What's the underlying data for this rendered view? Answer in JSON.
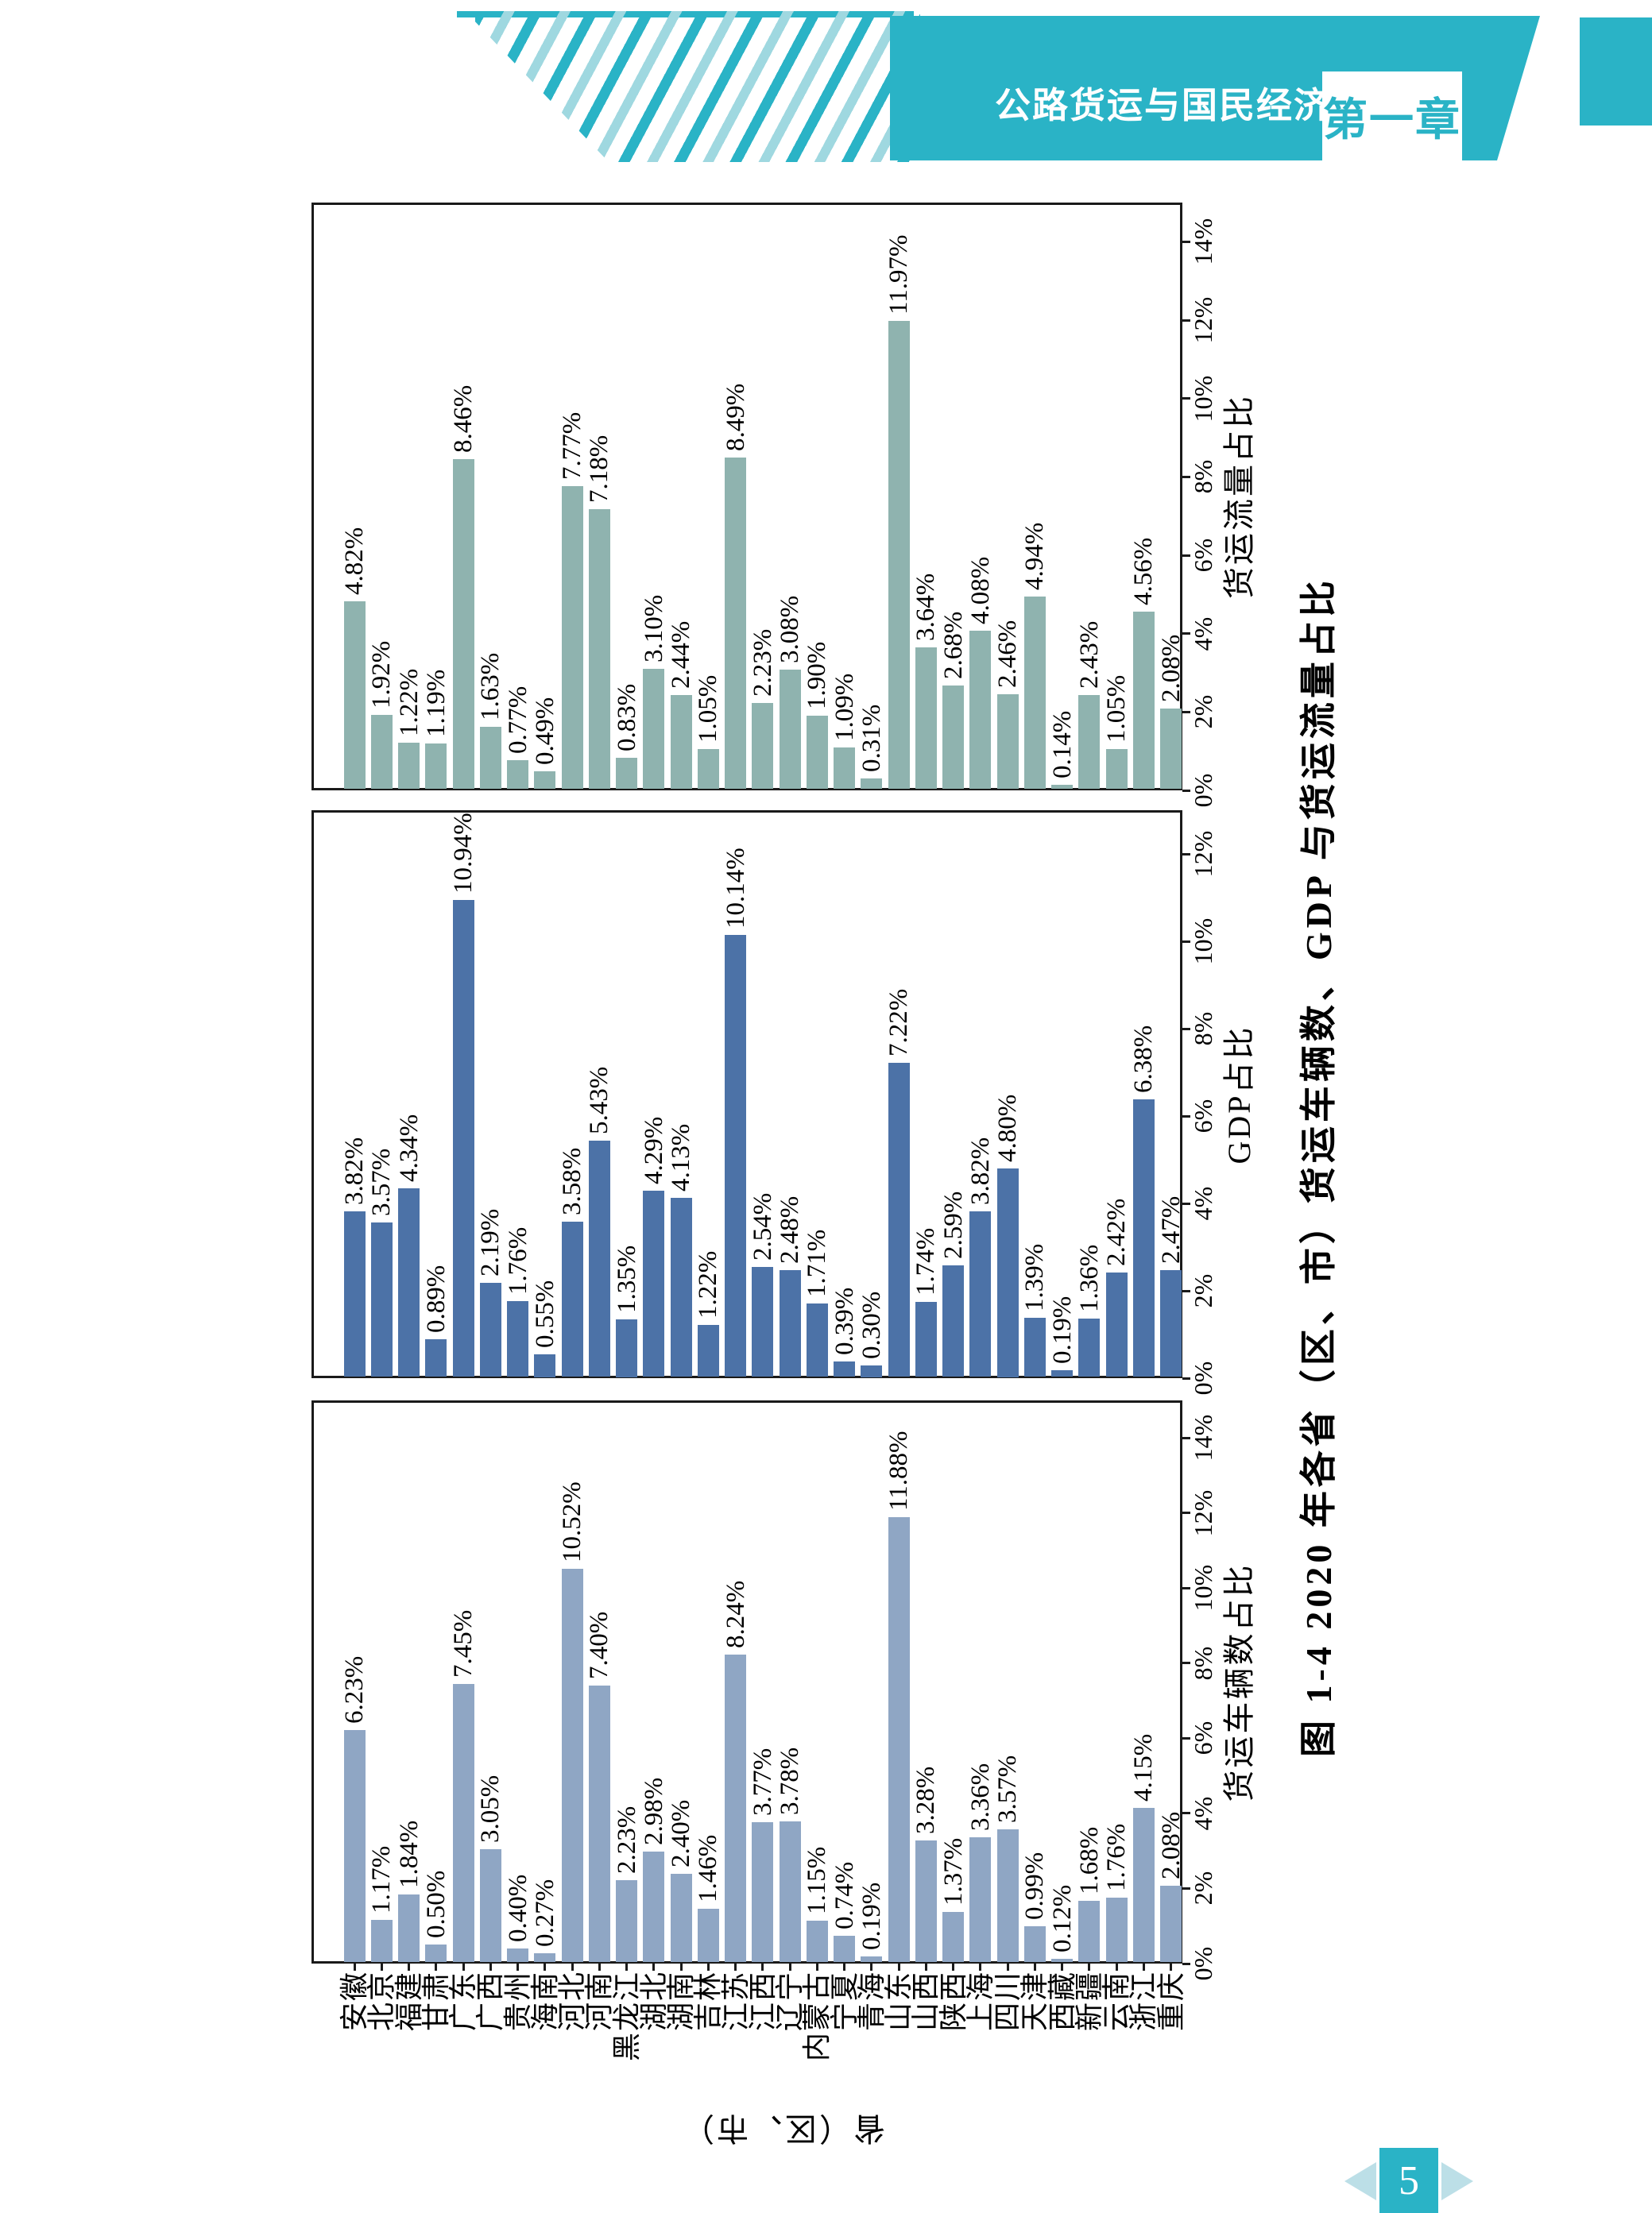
{
  "header": {
    "title": "公路货运与国民经济",
    "chapter": "第一章"
  },
  "footer": {
    "page_number": "5"
  },
  "colors": {
    "brand_teal": "#2ab3c6",
    "pale_teal": "#bcdfe7",
    "frame": "#1a1a1a",
    "bar_vehicles": "#8fa6c4",
    "bar_gdp": "#4c72a7",
    "bar_flow": "#8fb3af"
  },
  "chart_data": {
    "type": "bar",
    "title": "图 1-4 2020 年各省（区、市）货运车辆数、GDP 与货运流量占比",
    "orientation_note": "three stacked panels, whole figure rotated 90° CCW on the page (all text reads bottom-to-top)",
    "grid": "off",
    "tick_step_pct": 2,
    "tick_suffix": "%",
    "category_axis_title": "省（区、市）",
    "categories": [
      "安徽",
      "北京",
      "福建",
      "甘肃",
      "广东",
      "广西",
      "贵州",
      "海南",
      "河北",
      "河南",
      "黑龙江",
      "湖北",
      "湖南",
      "吉林",
      "江苏",
      "江西",
      "辽宁",
      "内蒙古",
      "宁夏",
      "青海",
      "山东",
      "山西",
      "陕西",
      "上海",
      "四川",
      "天津",
      "西藏",
      "新疆",
      "云南",
      "浙江",
      "重庆"
    ],
    "series": [
      {
        "name": "货运车辆数占比",
        "axis_max_pct": 14,
        "values": [
          6.23,
          1.17,
          1.84,
          0.5,
          7.45,
          3.05,
          0.4,
          0.27,
          10.52,
          7.4,
          2.23,
          2.98,
          2.4,
          1.46,
          8.24,
          3.77,
          3.78,
          1.15,
          0.74,
          0.19,
          11.88,
          3.28,
          1.37,
          3.36,
          3.57,
          0.99,
          0.12,
          1.68,
          1.76,
          4.15,
          2.08
        ]
      },
      {
        "name": "GDP占比",
        "axis_max_pct": 12,
        "values": [
          3.82,
          3.57,
          4.34,
          0.89,
          10.94,
          2.19,
          1.76,
          0.55,
          3.58,
          5.43,
          1.35,
          4.29,
          4.13,
          1.22,
          10.14,
          2.54,
          2.48,
          1.71,
          0.39,
          0.3,
          7.22,
          1.74,
          2.59,
          3.82,
          4.8,
          1.39,
          0.19,
          1.36,
          2.42,
          6.38,
          2.47
        ]
      },
      {
        "name": "货运流量占比",
        "axis_max_pct": 14,
        "values": [
          4.82,
          1.92,
          1.22,
          1.19,
          8.46,
          1.63,
          0.77,
          0.49,
          7.77,
          7.18,
          0.83,
          3.1,
          2.44,
          1.05,
          8.49,
          2.23,
          3.08,
          1.9,
          1.09,
          0.31,
          11.97,
          3.64,
          2.68,
          4.08,
          2.46,
          4.94,
          0.14,
          2.43,
          1.05,
          4.56,
          2.08
        ]
      }
    ]
  }
}
